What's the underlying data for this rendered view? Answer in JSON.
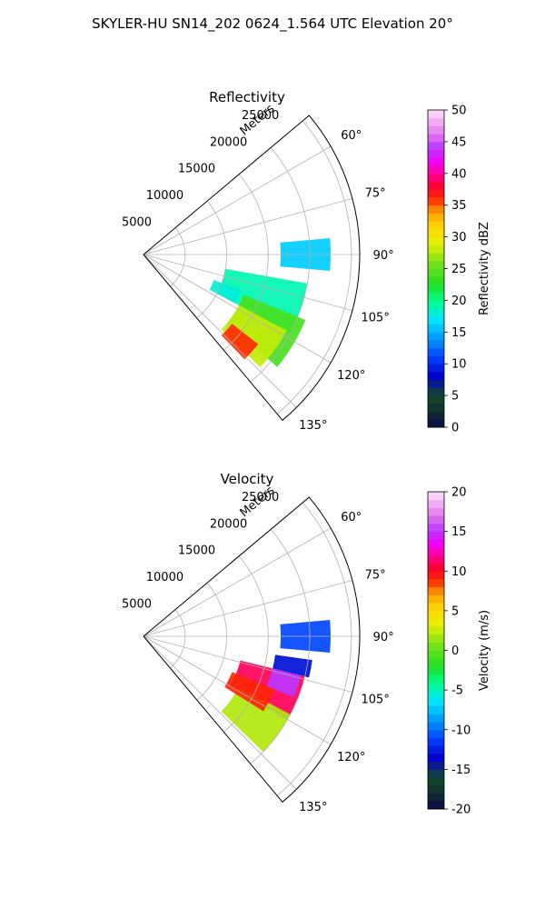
{
  "figure": {
    "suptitle": "SKYLER-HU  SN14_202  0624_1.564 UTC Elevation 20°"
  },
  "chart_data": [
    {
      "type": "polar-sector-heatmap",
      "title": "Reflectivity",
      "radial_label": "Meters",
      "radial_ticks": [
        5000,
        10000,
        15000,
        20000,
        25000
      ],
      "r_max": 26000,
      "azimuth_range_deg": [
        50,
        140
      ],
      "azimuth_ticks_deg": [
        60,
        75,
        90,
        105,
        120,
        135
      ],
      "azimuth_tick_labels": [
        "60°",
        "75°",
        "90°",
        "105°",
        "120°",
        "135°"
      ],
      "grid": true,
      "colorbar": {
        "label": "Reflectivity dBZ",
        "min": 0,
        "max": 50,
        "ticks": [
          0,
          5,
          10,
          15,
          20,
          25,
          30,
          35,
          40,
          45,
          50
        ]
      },
      "echo_regions": [
        {
          "az": [
            85,
            95
          ],
          "r": [
            16500,
            22500
          ],
          "value": 16
        },
        {
          "az": [
            100,
            118
          ],
          "r": [
            10000,
            20000
          ],
          "value": 19
        },
        {
          "az": [
            112,
            130
          ],
          "r": [
            13000,
            21000
          ],
          "value": 24
        },
        {
          "az": [
            118,
            134
          ],
          "r": [
            13000,
            19500
          ],
          "value": 28
        },
        {
          "az": [
            128,
            136
          ],
          "r": [
            13500,
            17500
          ],
          "value": 36
        },
        {
          "az": [
            110,
            118
          ],
          "r": [
            9000,
            12500
          ],
          "value": 18
        }
      ]
    },
    {
      "type": "polar-sector-heatmap",
      "title": "Velocity",
      "radial_label": "Meters",
      "radial_ticks": [
        5000,
        10000,
        15000,
        20000,
        25000
      ],
      "r_max": 26000,
      "azimuth_range_deg": [
        50,
        140
      ],
      "azimuth_ticks_deg": [
        60,
        75,
        90,
        105,
        120,
        135
      ],
      "azimuth_tick_labels": [
        "60°",
        "75°",
        "90°",
        "105°",
        "120°",
        "135°"
      ],
      "grid": true,
      "colorbar": {
        "label": "Velocity (m/s)",
        "min": -20,
        "max": 20,
        "ticks": [
          -20,
          -15,
          -10,
          -5,
          0,
          5,
          10,
          15,
          20
        ]
      },
      "echo_regions": [
        {
          "az": [
            85,
            95
          ],
          "r": [
            16500,
            22500
          ],
          "value": -11
        },
        {
          "az": [
            98,
            104
          ],
          "r": [
            16000,
            20500
          ],
          "value": -13
        },
        {
          "az": [
            104,
            120
          ],
          "r": [
            12000,
            20000
          ],
          "value": 11
        },
        {
          "az": [
            104,
            112
          ],
          "r": [
            16000,
            19500
          ],
          "value": 15
        },
        {
          "az": [
            118,
            134
          ],
          "r": [
            13000,
            20000
          ],
          "value": 2
        },
        {
          "az": [
            112,
            122
          ],
          "r": [
            11500,
            17000
          ],
          "value": 9
        }
      ]
    }
  ]
}
